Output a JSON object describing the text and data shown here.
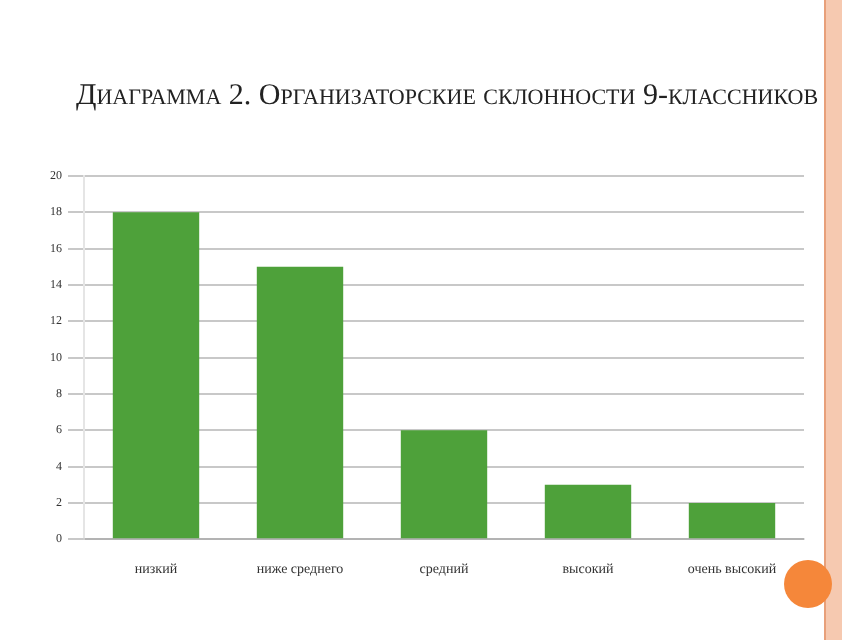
{
  "chart_data": {
    "type": "bar",
    "title": "Диаграмма 2. Организаторские склонности 9-классников",
    "categories": [
      "низкий",
      "ниже среднего",
      "средний",
      "высокий",
      "очень высокий"
    ],
    "values": [
      18,
      15,
      6,
      3,
      2
    ],
    "color": "#4ea13a",
    "ylim": [
      0,
      20
    ],
    "yticks": [
      0,
      2,
      4,
      6,
      8,
      10,
      12,
      14,
      16,
      18,
      20
    ],
    "grid": "y"
  }
}
